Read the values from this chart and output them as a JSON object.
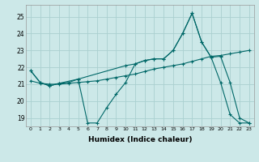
{
  "xlabel": "Humidex (Indice chaleur)",
  "background_color": "#cce8e8",
  "line_color": "#006868",
  "grid_color": "#aad0d0",
  "xlim": [
    -0.5,
    23.5
  ],
  "ylim": [
    18.5,
    25.7
  ],
  "yticks": [
    19,
    20,
    21,
    22,
    23,
    24,
    25
  ],
  "xticks": [
    0,
    1,
    2,
    3,
    4,
    5,
    6,
    7,
    8,
    9,
    10,
    11,
    12,
    13,
    14,
    15,
    16,
    17,
    18,
    19,
    20,
    21,
    22,
    23
  ],
  "line1_x": [
    0,
    1,
    2,
    3,
    4,
    5,
    6,
    7,
    8,
    9,
    10,
    11,
    12,
    13,
    14,
    15,
    16,
    17,
    18,
    19,
    20,
    21,
    22,
    23
  ],
  "line1_y": [
    21.8,
    21.1,
    20.9,
    21.05,
    21.1,
    21.3,
    18.7,
    18.7,
    19.6,
    20.4,
    21.1,
    22.2,
    22.4,
    22.5,
    22.5,
    23.0,
    24.0,
    25.2,
    23.5,
    22.6,
    21.1,
    19.2,
    18.7,
    18.7
  ],
  "line2_x": [
    0,
    1,
    2,
    3,
    4,
    5,
    6,
    7,
    8,
    9,
    10,
    11,
    12,
    13,
    14,
    15,
    16,
    17,
    18,
    19,
    20,
    21,
    22,
    23
  ],
  "line2_y": [
    21.2,
    21.05,
    21.0,
    21.0,
    21.05,
    21.1,
    21.15,
    21.2,
    21.3,
    21.4,
    21.5,
    21.6,
    21.75,
    21.9,
    22.0,
    22.1,
    22.2,
    22.35,
    22.5,
    22.65,
    22.7,
    22.8,
    22.9,
    23.0
  ],
  "line3_x": [
    0,
    1,
    2,
    3,
    5,
    10,
    11,
    12,
    13,
    14,
    15,
    16,
    17,
    18,
    19,
    20,
    21,
    22,
    23
  ],
  "line3_y": [
    21.8,
    21.1,
    20.9,
    21.05,
    21.3,
    22.1,
    22.2,
    22.4,
    22.5,
    22.5,
    23.0,
    24.0,
    25.2,
    23.5,
    22.6,
    22.65,
    21.1,
    19.0,
    18.7
  ]
}
